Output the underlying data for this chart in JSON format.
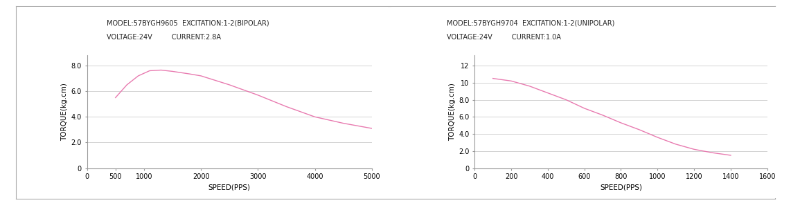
{
  "chart1": {
    "title_line1": "MODEL:57BYGH9605  EXCITATION:1-2(BIPOLAR)",
    "title_line2": "VOLTAGE:24V         CURRENT:2.8A",
    "xlabel": "SPEED(PPS)",
    "ylabel": "TORQUE(kg.cm)",
    "xlim": [
      0,
      5000
    ],
    "ylim": [
      0,
      8.8
    ],
    "xticks": [
      0,
      500,
      1000,
      2000,
      3000,
      4000,
      5000
    ],
    "yticks": [
      0,
      2.0,
      4.0,
      6.0,
      8.0
    ],
    "ytick_labels": [
      "0",
      "2.0",
      "4.0",
      "6.0",
      "8.0"
    ],
    "curve_x": [
      500,
      700,
      900,
      1100,
      1300,
      1500,
      1800,
      2000,
      2500,
      3000,
      3500,
      4000,
      4500,
      5000
    ],
    "curve_y": [
      5.5,
      6.5,
      7.2,
      7.6,
      7.65,
      7.55,
      7.35,
      7.2,
      6.5,
      5.7,
      4.8,
      4.0,
      3.5,
      3.1
    ],
    "line_color": "#E87BB0",
    "grid_color": "#CCCCCC",
    "bg_color": "#FFFFFF"
  },
  "chart2": {
    "title_line1": "MODEL:57BYGH9704  EXCITATION:1-2(UNIPOLAR)",
    "title_line2": "VOLTAGE:24V         CURRENT:1.0A",
    "xlabel": "SPEED(PPS)",
    "ylabel": "TORQUE(kg.cm)",
    "xlim": [
      0,
      1600
    ],
    "ylim": [
      0,
      13.2
    ],
    "xticks": [
      0,
      200,
      400,
      600,
      800,
      1000,
      1200,
      1400,
      1600
    ],
    "yticks": [
      0,
      2.0,
      4.0,
      6.0,
      8.0,
      10,
      12
    ],
    "ytick_labels": [
      "0",
      "2.0",
      "4.0",
      "6.0",
      "8.0",
      "10",
      "12"
    ],
    "curve_x": [
      100,
      200,
      300,
      400,
      500,
      600,
      700,
      800,
      900,
      1000,
      1100,
      1200,
      1300,
      1400
    ],
    "curve_y": [
      10.5,
      10.2,
      9.6,
      8.8,
      8.0,
      7.0,
      6.2,
      5.3,
      4.5,
      3.6,
      2.8,
      2.2,
      1.8,
      1.5
    ],
    "line_color": "#E87BB0",
    "grid_color": "#CCCCCC",
    "bg_color": "#FFFFFF"
  },
  "outer_bg": "#FFFFFF",
  "border_color": "#AAAAAA",
  "font_size_title": 7.0,
  "font_size_axis_label": 7.5,
  "font_size_tick": 7.0
}
